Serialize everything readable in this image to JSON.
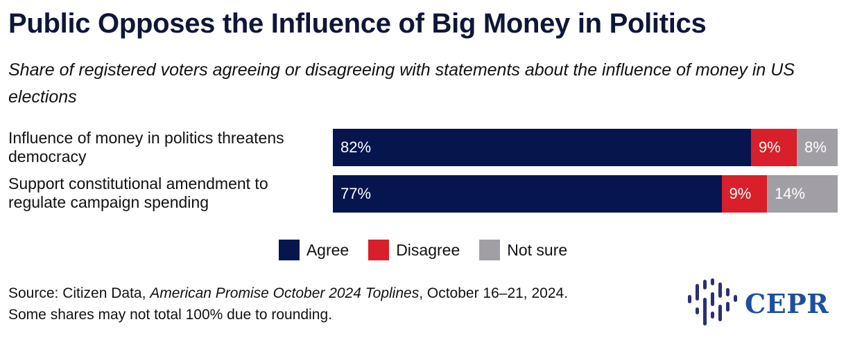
{
  "chart_data": {
    "type": "bar",
    "orientation": "horizontal",
    "stacked": true,
    "title": "Public Opposes the Influence of Big Money in Politics",
    "subtitle": "Share of registered voters agreeing or disagreeing with statements about the influence of money in US elections",
    "categories": [
      "Influence of money in politics threatens democracy",
      "Support constitutional amendment to regulate campaign spending"
    ],
    "series": [
      {
        "name": "Agree",
        "values": [
          82,
          77
        ],
        "labels": [
          "82%",
          "77%"
        ],
        "color": "#07154f"
      },
      {
        "name": "Disagree",
        "values": [
          9,
          9
        ],
        "labels": [
          "9%",
          "9%"
        ],
        "color": "#d81f2a"
      },
      {
        "name": "Not sure",
        "values": [
          8,
          14
        ],
        "labels": [
          "8%",
          "14%"
        ],
        "color": "#a19fa5"
      }
    ],
    "xlim": [
      0,
      100
    ],
    "legend_position": "bottom-center",
    "grid": false
  },
  "source": {
    "prefix": "Source: Citizen Data,",
    "publication": "American Promise October 2024 Toplines",
    "suffix": ", October 16–21, 2024.",
    "note": "Some shares may not total 100% due to rounding."
  },
  "logo": {
    "text": "CEPR",
    "color": "#1d4f9e",
    "icon": "cepr-bars-logo-icon"
  }
}
